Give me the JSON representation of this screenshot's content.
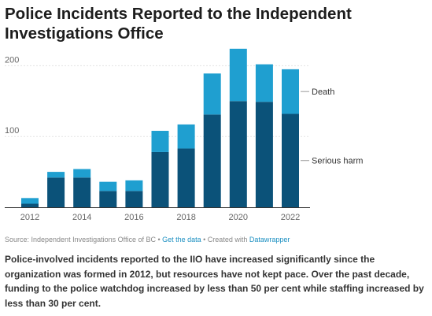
{
  "chart_data": {
    "type": "bar",
    "stacked": true,
    "title": "Police Incidents Reported to the Independent Investigations Office",
    "xlabel": "",
    "ylabel": "",
    "categories": [
      "2012",
      "2013",
      "2014",
      "2015",
      "2016",
      "2017",
      "2018",
      "2019",
      "2020",
      "2021",
      "2022"
    ],
    "x_tick_labels": [
      "2012",
      "2014",
      "2016",
      "2018",
      "2020",
      "2022"
    ],
    "y_ticks": [
      100,
      200
    ],
    "ylim": [
      0,
      225
    ],
    "grid": true,
    "legend_placement": "right, inline labels beside last bar",
    "series": [
      {
        "name": "Serious harm",
        "color": "#0b5279",
        "values": [
          5,
          42,
          42,
          23,
          23,
          78,
          83,
          131,
          150,
          149,
          132
        ]
      },
      {
        "name": "Death",
        "color": "#1f9fd0",
        "values": [
          8,
          8,
          12,
          13,
          15,
          30,
          34,
          58,
          74,
          53,
          63
        ]
      }
    ]
  },
  "source": {
    "prefix": "Source: Independent Investigations Office of BC",
    "sep1": " • ",
    "get_data": "Get the data",
    "sep2": " • Created with ",
    "tool": "Datawrapper"
  },
  "description": "Police-involved incidents reported to the IIO have increased significantly since the organization was formed in 2012, but resources have not kept pace. Over the past decade, funding to the police watchdog increased by less than 50 per cent while staffing increased by less than 30 per cent."
}
